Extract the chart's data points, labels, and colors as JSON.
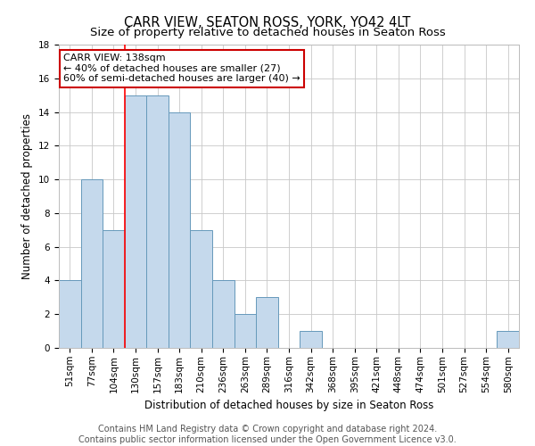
{
  "title": "CARR VIEW, SEATON ROSS, YORK, YO42 4LT",
  "subtitle": "Size of property relative to detached houses in Seaton Ross",
  "xlabel": "Distribution of detached houses by size in Seaton Ross",
  "ylabel": "Number of detached properties",
  "categories": [
    "51sqm",
    "77sqm",
    "104sqm",
    "130sqm",
    "157sqm",
    "183sqm",
    "210sqm",
    "236sqm",
    "263sqm",
    "289sqm",
    "316sqm",
    "342sqm",
    "368sqm",
    "395sqm",
    "421sqm",
    "448sqm",
    "474sqm",
    "501sqm",
    "527sqm",
    "554sqm",
    "580sqm"
  ],
  "values": [
    4,
    10,
    7,
    15,
    15,
    14,
    7,
    4,
    2,
    3,
    0,
    1,
    0,
    0,
    0,
    0,
    0,
    0,
    0,
    0,
    1
  ],
  "bar_color": "#c5d9ec",
  "bar_edge_color": "#6699bb",
  "red_line_x": 3.0,
  "annotation_title": "CARR VIEW: 138sqm",
  "annotation_line1": "← 40% of detached houses are smaller (27)",
  "annotation_line2": "60% of semi-detached houses are larger (40) →",
  "ylim": [
    0,
    18
  ],
  "yticks": [
    0,
    2,
    4,
    6,
    8,
    10,
    12,
    14,
    16,
    18
  ],
  "footer_line1": "Contains HM Land Registry data © Crown copyright and database right 2024.",
  "footer_line2": "Contains public sector information licensed under the Open Government Licence v3.0.",
  "background_color": "#ffffff",
  "grid_color": "#c8c8c8",
  "title_fontsize": 10.5,
  "subtitle_fontsize": 9.5,
  "axis_label_fontsize": 8.5,
  "tick_fontsize": 7.5,
  "footer_fontsize": 7,
  "annotation_box_color": "#ffffff",
  "annotation_border_color": "#cc0000",
  "annotation_fontsize": 8
}
